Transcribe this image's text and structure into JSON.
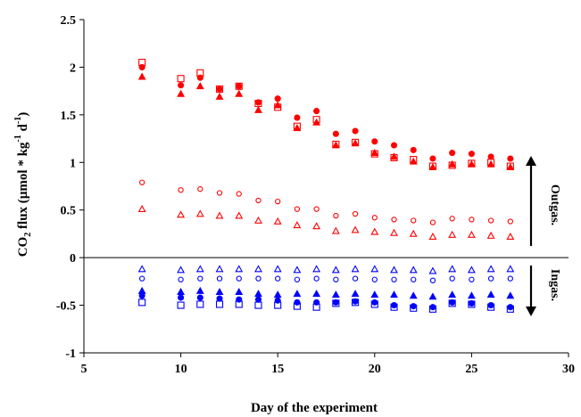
{
  "chart_data": {
    "type": "scatter",
    "title": "",
    "xlabel": "Day of the experiment",
    "ylabel": {
      "pre": "CO",
      "sub": "2",
      "mid": " flux (µmol * kg",
      "sup1": "-1",
      "d": " d",
      "sup2": "-1",
      "post": ")"
    },
    "xlim": [
      5,
      30
    ],
    "ylim": [
      -1,
      2.5
    ],
    "xticks": [
      5,
      10,
      15,
      20,
      25,
      30
    ],
    "yticks": [
      -1,
      -0.5,
      0,
      0.5,
      1,
      1.5,
      2,
      2.5
    ],
    "xtick_labels": [
      "5",
      "10",
      "15",
      "20",
      "25",
      "30"
    ],
    "ytick_labels": [
      "-1",
      "-0.5",
      "0",
      "0.5",
      "1",
      "1.5",
      "2",
      "2.5"
    ],
    "grid": false,
    "legend": "none",
    "annotations": {
      "outgas": "Outgas.",
      "ingas": "Ingas."
    },
    "x": [
      8,
      10,
      11,
      12,
      13,
      14,
      15,
      16,
      17,
      18,
      19,
      20,
      21,
      22,
      23,
      24,
      25,
      26,
      27
    ],
    "series": [
      {
        "color": "#ff0000",
        "marker": "filled-circle",
        "values": [
          2.0,
          1.81,
          1.89,
          1.77,
          1.8,
          1.63,
          1.67,
          1.47,
          1.54,
          1.3,
          1.33,
          1.22,
          1.18,
          1.13,
          1.04,
          1.1,
          1.09,
          1.06,
          1.04
        ]
      },
      {
        "color": "#ff0000",
        "marker": "filled-triangle",
        "values": [
          1.9,
          1.72,
          1.8,
          1.69,
          1.72,
          1.55,
          1.6,
          1.36,
          1.42,
          1.18,
          1.2,
          1.1,
          1.06,
          1.01,
          0.95,
          0.98,
          0.98,
          0.98,
          0.95
        ]
      },
      {
        "color": "#ff0000",
        "marker": "open-square",
        "values": [
          2.05,
          1.88,
          1.94,
          1.77,
          1.8,
          1.62,
          1.58,
          1.38,
          1.45,
          1.19,
          1.21,
          1.09,
          1.05,
          1.03,
          0.96,
          0.97,
          0.99,
          1.0,
          0.96
        ]
      },
      {
        "color": "#ff0000",
        "marker": "open-circle",
        "values": [
          0.79,
          0.71,
          0.72,
          0.68,
          0.67,
          0.6,
          0.59,
          0.51,
          0.51,
          0.44,
          0.46,
          0.42,
          0.4,
          0.39,
          0.37,
          0.41,
          0.4,
          0.39,
          0.38
        ]
      },
      {
        "color": "#ff0000",
        "marker": "open-triangle",
        "values": [
          0.51,
          0.45,
          0.46,
          0.44,
          0.44,
          0.39,
          0.38,
          0.34,
          0.33,
          0.28,
          0.29,
          0.27,
          0.26,
          0.25,
          0.22,
          0.24,
          0.24,
          0.23,
          0.22
        ]
      },
      {
        "color": "#0000ff",
        "marker": "open-triangle",
        "values": [
          -0.12,
          -0.13,
          -0.12,
          -0.12,
          -0.12,
          -0.12,
          -0.12,
          -0.13,
          -0.12,
          -0.13,
          -0.12,
          -0.12,
          -0.13,
          -0.13,
          -0.14,
          -0.12,
          -0.13,
          -0.12,
          -0.12
        ]
      },
      {
        "color": "#0000ff",
        "marker": "open-circle",
        "values": [
          -0.22,
          -0.23,
          -0.22,
          -0.22,
          -0.22,
          -0.22,
          -0.22,
          -0.23,
          -0.22,
          -0.23,
          -0.22,
          -0.23,
          -0.23,
          -0.23,
          -0.24,
          -0.22,
          -0.23,
          -0.22,
          -0.22
        ]
      },
      {
        "color": "#0000ff",
        "marker": "filled-triangle",
        "values": [
          -0.35,
          -0.36,
          -0.35,
          -0.36,
          -0.36,
          -0.38,
          -0.39,
          -0.38,
          -0.38,
          -0.39,
          -0.38,
          -0.39,
          -0.39,
          -0.4,
          -0.41,
          -0.39,
          -0.4,
          -0.39,
          -0.4
        ]
      },
      {
        "color": "#0000ff",
        "marker": "filled-circle",
        "values": [
          -0.4,
          -0.42,
          -0.42,
          -0.43,
          -0.44,
          -0.44,
          -0.45,
          -0.47,
          -0.47,
          -0.47,
          -0.46,
          -0.47,
          -0.5,
          -0.51,
          -0.52,
          -0.47,
          -0.48,
          -0.5,
          -0.52
        ]
      },
      {
        "color": "#0000ff",
        "marker": "open-square",
        "values": [
          -0.47,
          -0.5,
          -0.49,
          -0.49,
          -0.49,
          -0.5,
          -0.5,
          -0.51,
          -0.52,
          -0.48,
          -0.47,
          -0.49,
          -0.52,
          -0.53,
          -0.54,
          -0.48,
          -0.49,
          -0.52,
          -0.54
        ]
      }
    ]
  }
}
